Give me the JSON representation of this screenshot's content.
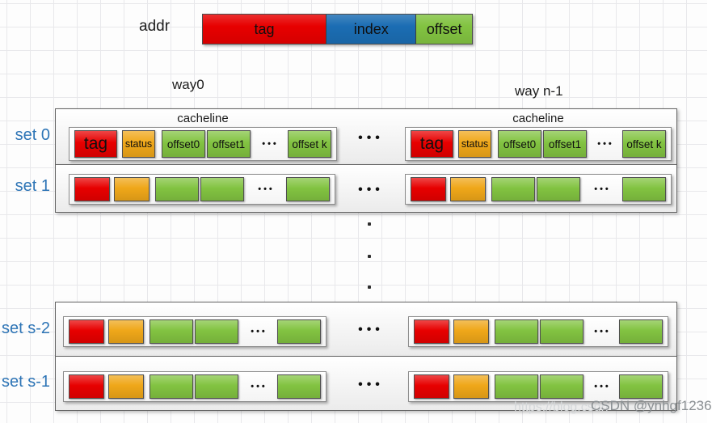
{
  "colors": {
    "red": "#e70000",
    "blue": "#1b6db3",
    "green": "#82c341",
    "orange": "#efa719",
    "setblue": "#2e75b6"
  },
  "addr": {
    "label": "addr",
    "tag": "tag",
    "index": "index",
    "offset": "offset"
  },
  "ways": {
    "way0": "way0",
    "wayn1": "way n-1"
  },
  "cacheline_label": "cacheline",
  "cells": {
    "tag": "tag",
    "status": "status",
    "offset0": "offset0",
    "offset1": "offset1",
    "offsetk": "offset k"
  },
  "sets": {
    "set0": "set 0",
    "set1": "set 1",
    "sets2": "set s-2",
    "sets1": "set s-1"
  },
  "dots": {
    "inner": "•••",
    "between": "•••"
  },
  "watermark": {
    "faint": "https://blog.csdn",
    "main": "CSDN @ynhgf1236"
  }
}
